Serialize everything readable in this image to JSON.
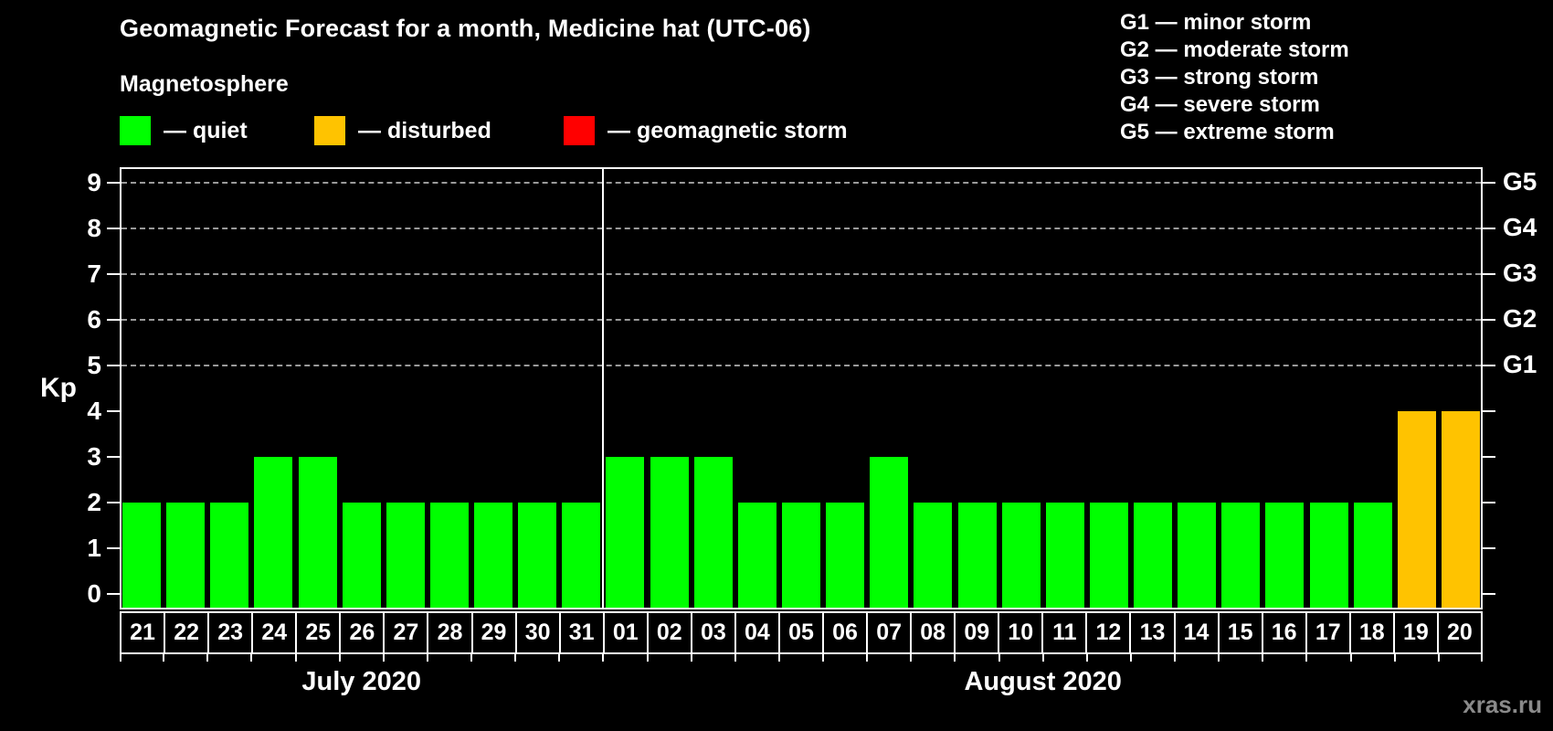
{
  "page": {
    "title": "Geomagnetic Forecast for a month, Medicine hat (UTC-06)",
    "subtitle": "Magnetosphere",
    "watermark": "xras.ru"
  },
  "colors": {
    "quiet": "#00FF00",
    "disturbed": "#FFC300",
    "storm": "#FF0000",
    "axis": "#FFFFFF",
    "grid": "#9A9A9A",
    "watermark": "#8A8A8A",
    "background": "#000000"
  },
  "legend": {
    "items": [
      {
        "key": "quiet",
        "text": "— quiet"
      },
      {
        "key": "disturbed",
        "text": "— disturbed"
      },
      {
        "key": "storm",
        "text": "— geomagnetic storm"
      }
    ]
  },
  "g_scale": {
    "items": [
      {
        "text": "G1 — minor storm"
      },
      {
        "text": "G2 — moderate storm"
      },
      {
        "text": "G3 — strong storm"
      },
      {
        "text": "G4 — severe storm"
      },
      {
        "text": "G5 — extreme storm"
      }
    ]
  },
  "chart_data": {
    "type": "bar",
    "title": "Geomagnetic Forecast for a month, Medicine hat (UTC-06)",
    "ylabel": "Kp",
    "ylim": [
      0,
      9.3
    ],
    "y_ticks": [
      0,
      1,
      2,
      3,
      4,
      5,
      6,
      7,
      8,
      9
    ],
    "grid_kp": [
      5,
      6,
      7,
      8,
      9
    ],
    "right_axis": [
      {
        "kp": 5,
        "label": "G1"
      },
      {
        "kp": 6,
        "label": "G2"
      },
      {
        "kp": 7,
        "label": "G3"
      },
      {
        "kp": 8,
        "label": "G4"
      },
      {
        "kp": 9,
        "label": "G5"
      }
    ],
    "legend_position": "top-left",
    "grid": "dashed-horizontal-5-to-9",
    "months": [
      {
        "label": "July 2020",
        "days": [
          {
            "day": "21",
            "kp": 2,
            "state": "quiet"
          },
          {
            "day": "22",
            "kp": 2,
            "state": "quiet"
          },
          {
            "day": "23",
            "kp": 2,
            "state": "quiet"
          },
          {
            "day": "24",
            "kp": 3,
            "state": "quiet"
          },
          {
            "day": "25",
            "kp": 3,
            "state": "quiet"
          },
          {
            "day": "26",
            "kp": 2,
            "state": "quiet"
          },
          {
            "day": "27",
            "kp": 2,
            "state": "quiet"
          },
          {
            "day": "28",
            "kp": 2,
            "state": "quiet"
          },
          {
            "day": "29",
            "kp": 2,
            "state": "quiet"
          },
          {
            "day": "30",
            "kp": 2,
            "state": "quiet"
          },
          {
            "day": "31",
            "kp": 2,
            "state": "quiet"
          }
        ]
      },
      {
        "label": "August 2020",
        "days": [
          {
            "day": "01",
            "kp": 3,
            "state": "quiet"
          },
          {
            "day": "02",
            "kp": 3,
            "state": "quiet"
          },
          {
            "day": "03",
            "kp": 3,
            "state": "quiet"
          },
          {
            "day": "04",
            "kp": 2,
            "state": "quiet"
          },
          {
            "day": "05",
            "kp": 2,
            "state": "quiet"
          },
          {
            "day": "06",
            "kp": 2,
            "state": "quiet"
          },
          {
            "day": "07",
            "kp": 3,
            "state": "quiet"
          },
          {
            "day": "08",
            "kp": 2,
            "state": "quiet"
          },
          {
            "day": "09",
            "kp": 2,
            "state": "quiet"
          },
          {
            "day": "10",
            "kp": 2,
            "state": "quiet"
          },
          {
            "day": "11",
            "kp": 2,
            "state": "quiet"
          },
          {
            "day": "12",
            "kp": 2,
            "state": "quiet"
          },
          {
            "day": "13",
            "kp": 2,
            "state": "quiet"
          },
          {
            "day": "14",
            "kp": 2,
            "state": "quiet"
          },
          {
            "day": "15",
            "kp": 2,
            "state": "quiet"
          },
          {
            "day": "16",
            "kp": 2,
            "state": "quiet"
          },
          {
            "day": "17",
            "kp": 2,
            "state": "quiet"
          },
          {
            "day": "18",
            "kp": 2,
            "state": "quiet"
          },
          {
            "day": "19",
            "kp": 4,
            "state": "disturbed"
          },
          {
            "day": "20",
            "kp": 4,
            "state": "disturbed"
          }
        ]
      }
    ]
  }
}
